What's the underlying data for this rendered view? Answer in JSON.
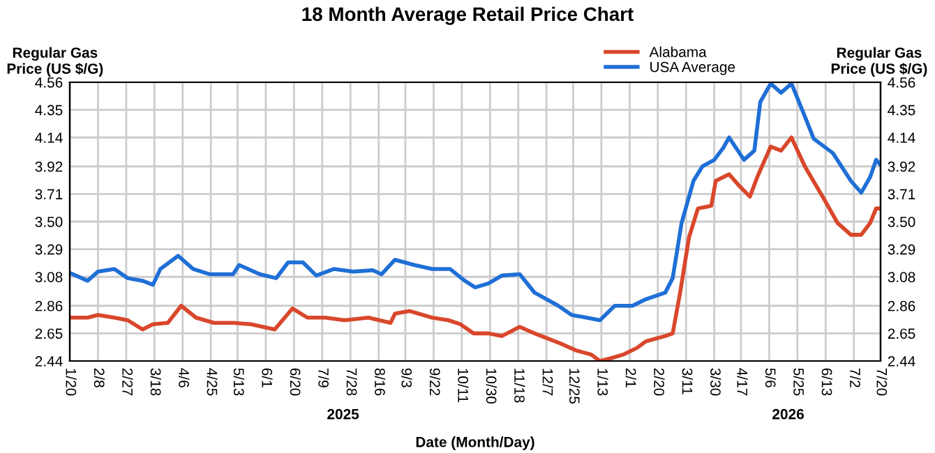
{
  "chart_data": {
    "type": "line",
    "title": "18 Month Average Retail Price Chart",
    "xlabel": "Date (Month/Day)",
    "ylabel": "Regular Gas\nPrice (US $/G)",
    "y2label": "Regular Gas\nPrice (US $/G)",
    "annotations": [
      "2025",
      "2026"
    ],
    "xlim": [
      "2025-01-20",
      "2026-07-20"
    ],
    "xticks": [
      {
        "value": "2025-01-20",
        "label": "1/20"
      },
      {
        "value": "2025-02-08",
        "label": "2/8"
      },
      {
        "value": "2025-02-27",
        "label": "2/27"
      },
      {
        "value": "2025-03-18",
        "label": "3/18"
      },
      {
        "value": "2025-04-06",
        "label": "4/6"
      },
      {
        "value": "2025-04-25",
        "label": "4/25"
      },
      {
        "value": "2025-05-13",
        "label": "5/13"
      },
      {
        "value": "2025-06-01",
        "label": "6/1"
      },
      {
        "value": "2025-06-20",
        "label": "6/20"
      },
      {
        "value": "2025-07-09",
        "label": "7/9"
      },
      {
        "value": "2025-07-28",
        "label": "7/28"
      },
      {
        "value": "2025-08-16",
        "label": "8/16"
      },
      {
        "value": "2025-09-03",
        "label": "9/3"
      },
      {
        "value": "2025-09-22",
        "label": "9/22"
      },
      {
        "value": "2025-10-11",
        "label": "10/11"
      },
      {
        "value": "2025-10-30",
        "label": "10/30"
      },
      {
        "value": "2025-11-18",
        "label": "11/18"
      },
      {
        "value": "2025-12-07",
        "label": "12/7"
      },
      {
        "value": "2025-12-25",
        "label": "12/25"
      },
      {
        "value": "2026-01-13",
        "label": "1/13"
      },
      {
        "value": "2026-02-01",
        "label": "2/1"
      },
      {
        "value": "2026-02-20",
        "label": "2/20"
      },
      {
        "value": "2026-03-11",
        "label": "3/11"
      },
      {
        "value": "2026-03-30",
        "label": "3/30"
      },
      {
        "value": "2026-04-17",
        "label": "4/17"
      },
      {
        "value": "2026-05-06",
        "label": "5/6"
      },
      {
        "value": "2026-05-25",
        "label": "5/25"
      },
      {
        "value": "2026-06-13",
        "label": "6/13"
      },
      {
        "value": "2026-07-02",
        "label": "7/2"
      },
      {
        "value": "2026-07-20",
        "label": "7/20"
      }
    ],
    "ylim": [
      2.44,
      4.56
    ],
    "yticks": [
      2.44,
      2.65,
      2.86,
      3.08,
      3.29,
      {
        "value": 3.5,
        "label": "3.50"
      },
      3.71,
      3.92,
      4.14,
      4.35,
      4.56
    ],
    "y2lim": [
      2.44,
      4.56
    ],
    "y2ticks": [
      2.44,
      2.65,
      2.86,
      3.08,
      3.29,
      {
        "value": 3.5,
        "label": "3.50"
      },
      3.71,
      3.92,
      4.14,
      4.35,
      4.56
    ],
    "grid": true,
    "legend": "top right",
    "series": [
      {
        "name": "Alabama",
        "color": "#d9472b",
        "x": [
          "2025-01-20",
          "2025-02-01",
          "2025-02-08",
          "2025-02-19",
          "2025-02-28",
          "2025-03-10",
          "2025-03-17",
          "2025-03-27",
          "2025-04-05",
          "2025-04-15",
          "2025-04-27",
          "2025-05-10",
          "2025-05-22",
          "2025-06-07",
          "2025-06-19",
          "2025-06-29",
          "2025-07-11",
          "2025-07-24",
          "2025-08-09",
          "2025-08-24",
          "2025-08-27",
          "2025-09-06",
          "2025-09-21",
          "2025-10-02",
          "2025-10-10",
          "2025-10-19",
          "2025-10-29",
          "2025-11-07",
          "2025-11-19",
          "2025-11-29",
          "2025-12-15",
          "2025-12-27",
          "2026-01-06",
          "2026-01-12",
          "2026-01-19",
          "2026-01-28",
          "2026-02-06",
          "2026-02-12",
          "2026-02-25",
          "2026-03-02",
          "2026-03-07",
          "2026-03-13",
          "2026-03-19",
          "2026-03-28",
          "2026-03-31",
          "2026-04-09",
          "2026-04-16",
          "2026-04-23",
          "2026-04-28",
          "2026-05-07",
          "2026-05-14",
          "2026-05-21",
          "2026-05-30",
          "2026-06-12",
          "2026-06-21",
          "2026-06-30",
          "2026-07-07",
          "2026-07-13",
          "2026-07-17",
          "2026-07-20"
        ],
        "values": [
          2.77,
          2.77,
          2.79,
          2.77,
          2.75,
          2.68,
          2.72,
          2.73,
          2.86,
          2.77,
          2.73,
          2.73,
          2.72,
          2.68,
          2.84,
          2.77,
          2.77,
          2.75,
          2.77,
          2.73,
          2.8,
          2.82,
          2.77,
          2.75,
          2.72,
          2.65,
          2.65,
          2.63,
          2.7,
          2.65,
          2.58,
          2.52,
          2.49,
          2.44,
          2.46,
          2.49,
          2.54,
          2.59,
          2.63,
          2.65,
          2.96,
          3.38,
          3.6,
          3.62,
          3.81,
          3.86,
          3.77,
          3.69,
          3.84,
          4.07,
          4.04,
          4.14,
          3.92,
          3.67,
          3.49,
          3.4,
          3.4,
          3.49,
          3.6,
          3.6
        ]
      },
      {
        "name": "USA Average",
        "color": "#1f6fd6",
        "x": [
          "2025-01-20",
          "2025-02-01",
          "2025-02-08",
          "2025-02-19",
          "2025-02-28",
          "2025-03-10",
          "2025-03-17",
          "2025-03-22",
          "2025-04-03",
          "2025-04-13",
          "2025-04-24",
          "2025-05-10",
          "2025-05-14",
          "2025-05-28",
          "2025-06-08",
          "2025-06-16",
          "2025-06-26",
          "2025-07-05",
          "2025-07-17",
          "2025-07-30",
          "2025-08-12",
          "2025-08-18",
          "2025-08-27",
          "2025-09-09",
          "2025-09-21",
          "2025-10-03",
          "2025-10-13",
          "2025-10-20",
          "2025-10-29",
          "2025-11-07",
          "2025-11-19",
          "2025-11-29",
          "2025-12-15",
          "2025-12-24",
          "2026-01-03",
          "2026-01-12",
          "2026-01-22",
          "2026-02-03",
          "2026-02-12",
          "2026-02-25",
          "2026-03-02",
          "2026-03-08",
          "2026-03-16",
          "2026-03-22",
          "2026-03-30",
          "2026-04-05",
          "2026-04-09",
          "2026-04-19",
          "2026-04-26",
          "2026-04-30",
          "2026-05-07",
          "2026-05-14",
          "2026-05-21",
          "2026-05-30",
          "2026-06-05",
          "2026-06-18",
          "2026-06-30",
          "2026-07-07",
          "2026-07-13",
          "2026-07-17",
          "2026-07-20"
        ],
        "values": [
          3.11,
          3.05,
          3.12,
          3.14,
          3.07,
          3.05,
          3.02,
          3.14,
          3.24,
          3.14,
          3.1,
          3.1,
          3.17,
          3.1,
          3.07,
          3.19,
          3.19,
          3.09,
          3.14,
          3.12,
          3.13,
          3.1,
          3.21,
          3.17,
          3.14,
          3.14,
          3.05,
          3.0,
          3.03,
          3.09,
          3.1,
          2.96,
          2.86,
          2.79,
          2.77,
          2.75,
          2.86,
          2.86,
          2.91,
          2.96,
          3.07,
          3.49,
          3.81,
          3.92,
          3.97,
          4.06,
          4.14,
          3.97,
          4.04,
          4.41,
          4.55,
          4.48,
          4.55,
          4.3,
          4.13,
          4.02,
          3.81,
          3.72,
          3.84,
          3.97,
          3.93
        ]
      }
    ]
  }
}
